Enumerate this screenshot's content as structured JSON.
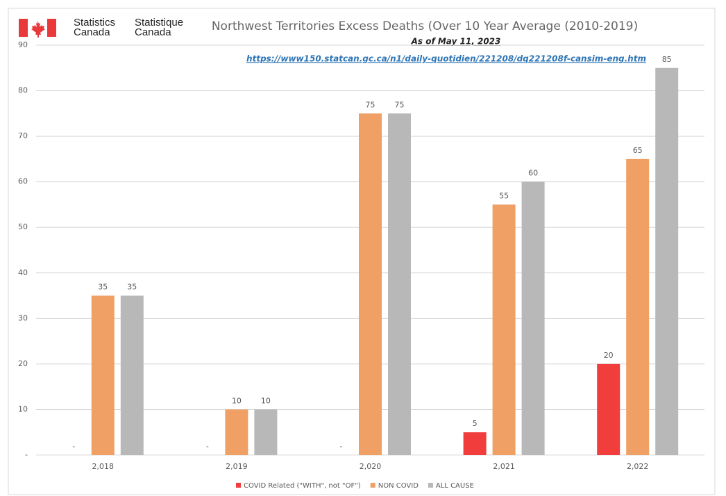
{
  "chart_data": {
    "type": "bar",
    "title": "Northwest Territories Excess Deaths (Over 10 Year Average (2010-2019)",
    "subtitle": "As of May 11, 2023",
    "source_url": "https://www150.statcan.gc.ca/n1/daily-quotidien/221208/dq221208f-cansim-eng.htm",
    "logo_lines": [
      "Statistics",
      "Canada",
      "Statistique",
      "Canada"
    ],
    "categories": [
      "2,018",
      "2,019",
      "2,020",
      "2,021",
      "2,022"
    ],
    "series": [
      {
        "name": "COVID Related (\"WITH\", not \"OF\")",
        "color": "#f23d3d",
        "values": [
          0,
          0,
          0,
          5,
          20
        ],
        "value_labels": [
          "-",
          "-",
          "-",
          "5",
          "20"
        ]
      },
      {
        "name": "NON COVID",
        "color": "#f0a064",
        "values": [
          35,
          10,
          75,
          55,
          65
        ]
      },
      {
        "name": "ALL CAUSE",
        "color": "#b8b8b8",
        "values": [
          35,
          10,
          75,
          60,
          85
        ]
      }
    ],
    "ylim": [
      0,
      90
    ],
    "yticks": [
      {
        "value": 0,
        "label": "-"
      },
      10,
      20,
      30,
      40,
      50,
      60,
      70,
      80,
      90
    ],
    "grid": true,
    "legend": "bottom"
  }
}
